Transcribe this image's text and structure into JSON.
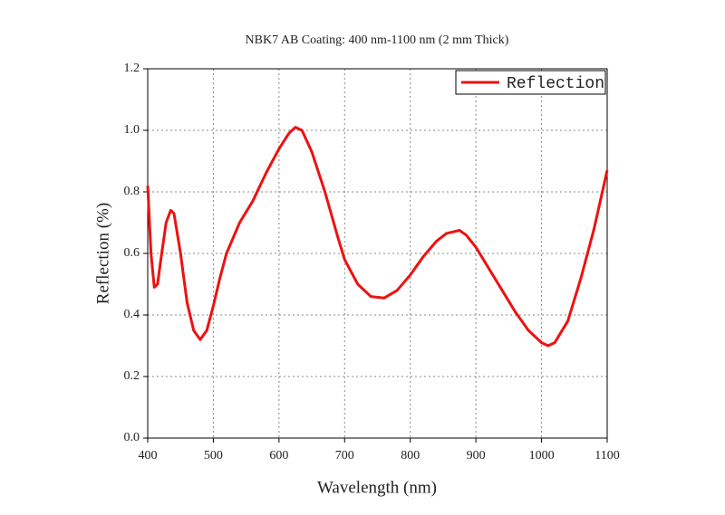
{
  "chart_data": {
    "type": "line",
    "title": "NBK7 AB Coating: 400 nm-1100 nm (2 mm Thick)",
    "x_label": "Wavelength (nm)",
    "y_label": "Reflection (%)",
    "x": [
      400,
      405,
      410,
      415,
      420,
      428,
      435,
      440,
      450,
      460,
      470,
      480,
      490,
      500,
      510,
      520,
      540,
      560,
      580,
      600,
      615,
      625,
      635,
      650,
      670,
      690,
      700,
      720,
      740,
      760,
      780,
      800,
      820,
      840,
      855,
      865,
      875,
      885,
      900,
      920,
      940,
      960,
      980,
      1000,
      1010,
      1020,
      1040,
      1060,
      1080,
      1100
    ],
    "series": [
      {
        "name": "Reflection",
        "color": "#ee1111",
        "values": [
          0.82,
          0.6,
          0.49,
          0.5,
          0.58,
          0.7,
          0.74,
          0.73,
          0.6,
          0.44,
          0.35,
          0.32,
          0.35,
          0.43,
          0.52,
          0.6,
          0.7,
          0.77,
          0.86,
          0.94,
          0.99,
          1.01,
          1.0,
          0.93,
          0.8,
          0.65,
          0.58,
          0.5,
          0.46,
          0.455,
          0.48,
          0.53,
          0.59,
          0.64,
          0.665,
          0.67,
          0.675,
          0.66,
          0.62,
          0.55,
          0.48,
          0.41,
          0.35,
          0.31,
          0.3,
          0.31,
          0.38,
          0.52,
          0.68,
          0.87
        ]
      }
    ],
    "xlim": [
      400,
      1100
    ],
    "xticks": [
      400,
      500,
      600,
      700,
      800,
      900,
      1000,
      1100
    ],
    "ylim": [
      0,
      1.2
    ],
    "yticks": [
      {
        "value": 0,
        "label": "0.0"
      },
      0.2,
      0.4,
      0.6,
      0.8,
      {
        "value": 1,
        "label": "1.0"
      },
      1.2
    ],
    "grid": true,
    "legend": "upper right"
  }
}
